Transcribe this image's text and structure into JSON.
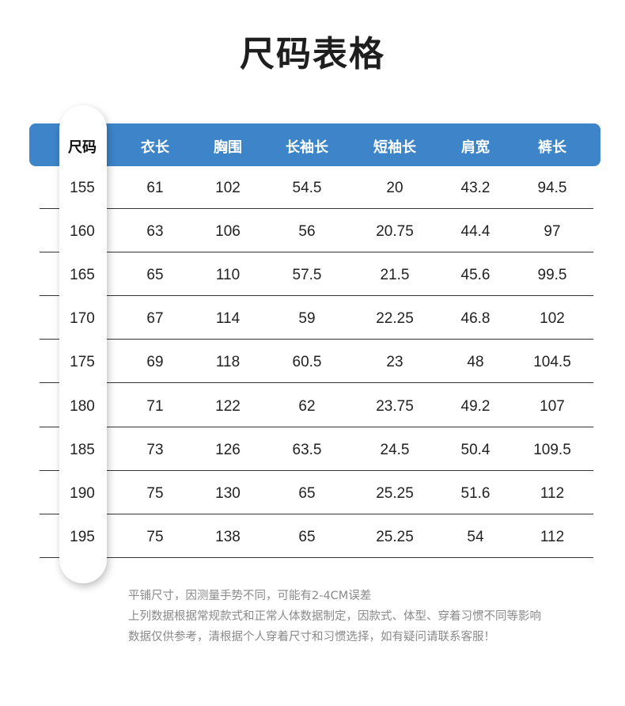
{
  "title": "尺码表格",
  "header_color": "#3d85c8",
  "columns": [
    "尺码",
    "衣长",
    "胸围",
    "长袖长",
    "短袖长",
    "肩宽",
    "裤长"
  ],
  "rows": [
    [
      "155",
      "61",
      "102",
      "54.5",
      "20",
      "43.2",
      "94.5"
    ],
    [
      "160",
      "63",
      "106",
      "56",
      "20.75",
      "44.4",
      "97"
    ],
    [
      "165",
      "65",
      "110",
      "57.5",
      "21.5",
      "45.6",
      "99.5"
    ],
    [
      "170",
      "67",
      "114",
      "59",
      "22.25",
      "46.8",
      "102"
    ],
    [
      "175",
      "69",
      "118",
      "60.5",
      "23",
      "48",
      "104.5"
    ],
    [
      "180",
      "71",
      "122",
      "62",
      "23.75",
      "49.2",
      "107"
    ],
    [
      "185",
      "73",
      "126",
      "63.5",
      "24.5",
      "50.4",
      "109.5"
    ],
    [
      "190",
      "75",
      "130",
      "65",
      "25.25",
      "51.6",
      "112"
    ],
    [
      "195",
      "75",
      "138",
      "65",
      "25.25",
      "54",
      "112"
    ]
  ],
  "notes": [
    "平铺尺寸，因测量手势不同，可能有2-4CM误差",
    "上列数据根据常规款式和正常人体数据制定，因款式、体型、穿着习惯不同等影响",
    "数据仅供参考，清根据个人穿着尺寸和习惯选择，如有疑问请联系客服！"
  ]
}
